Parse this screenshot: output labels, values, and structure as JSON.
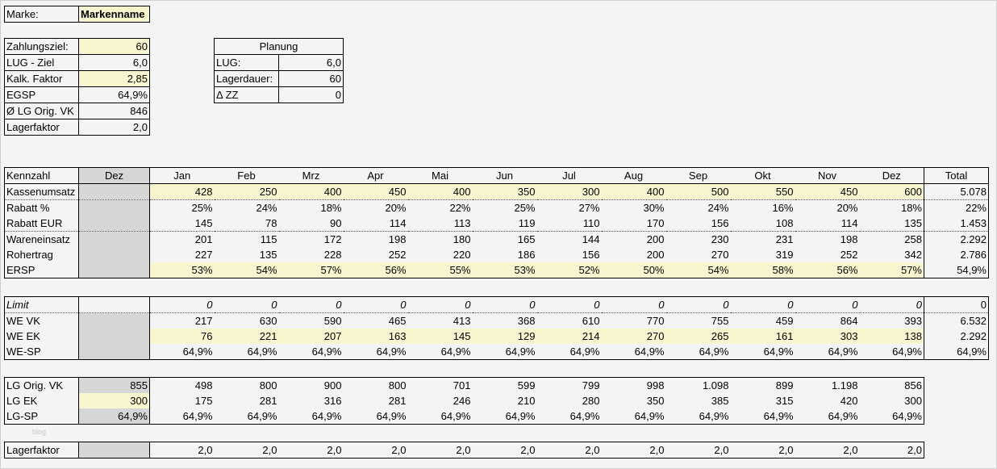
{
  "brand": {
    "label": "Marke:",
    "value": "Markenname"
  },
  "params": [
    {
      "label": "Zahlungsziel:",
      "value": "60",
      "highlight": "yellow"
    },
    {
      "label": "LUG - Ziel",
      "value": "6,0"
    },
    {
      "label": "Kalk. Faktor",
      "value": "2,85",
      "highlight": "yellow"
    },
    {
      "label": "EGSP",
      "value": "64,9%"
    },
    {
      "label": "Ø LG Orig. VK",
      "value": "846"
    },
    {
      "label": "Lagerfaktor",
      "value": "2,0"
    }
  ],
  "planning": {
    "title": "Planung",
    "rows": [
      {
        "label": "LUG:",
        "value": "6,0"
      },
      {
        "label": "Lagerdauer:",
        "value": "60"
      },
      {
        "label": "Δ ZZ",
        "value": "0"
      }
    ]
  },
  "header": {
    "label": "Kennzahl",
    "dez": "Dez",
    "months": [
      "Jan",
      "Feb",
      "Mrz",
      "Apr",
      "Mai",
      "Jun",
      "Jul",
      "Aug",
      "Sep",
      "Okt",
      "Nov",
      "Dez"
    ],
    "total": "Total"
  },
  "table1": [
    {
      "label": "Kassenumsatz",
      "dez": "",
      "values": [
        "428",
        "250",
        "400",
        "450",
        "400",
        "350",
        "300",
        "400",
        "500",
        "550",
        "450",
        "600"
      ],
      "total": "5.078",
      "highlight": "yellow",
      "dotted": true
    },
    {
      "label": "Rabatt %",
      "dez": "",
      "values": [
        "25%",
        "24%",
        "18%",
        "20%",
        "22%",
        "25%",
        "27%",
        "30%",
        "24%",
        "16%",
        "20%",
        "18%"
      ],
      "total": "22%"
    },
    {
      "label": "Rabatt EUR",
      "dez": "",
      "values": [
        "145",
        "78",
        "90",
        "114",
        "113",
        "119",
        "110",
        "170",
        "156",
        "108",
        "114",
        "135"
      ],
      "total": "1.453",
      "dotted": true
    },
    {
      "label": "Wareneinsatz",
      "dez": "",
      "values": [
        "201",
        "115",
        "172",
        "198",
        "180",
        "165",
        "144",
        "200",
        "230",
        "231",
        "198",
        "258"
      ],
      "total": "2.292"
    },
    {
      "label": "Rohertrag",
      "dez": "",
      "values": [
        "227",
        "135",
        "228",
        "252",
        "220",
        "186",
        "156",
        "200",
        "270",
        "319",
        "252",
        "342"
      ],
      "total": "2.786"
    },
    {
      "label": "ERSP",
      "dez": "",
      "values": [
        "53%",
        "54%",
        "57%",
        "56%",
        "55%",
        "53%",
        "52%",
        "50%",
        "54%",
        "58%",
        "56%",
        "57%"
      ],
      "total": "54,9%",
      "highlight": "yellow"
    }
  ],
  "table2": [
    {
      "label": "Limit",
      "dez": "",
      "values": [
        "0",
        "0",
        "0",
        "0",
        "0",
        "0",
        "0",
        "0",
        "0",
        "0",
        "0",
        "0"
      ],
      "total": "0",
      "italic": true,
      "dotted": true,
      "dez_plain": true
    },
    {
      "label": "WE VK",
      "dez": "",
      "values": [
        "217",
        "630",
        "590",
        "465",
        "413",
        "368",
        "610",
        "770",
        "755",
        "459",
        "864",
        "393"
      ],
      "total": "6.532"
    },
    {
      "label": "WE EK",
      "dez": "",
      "values": [
        "76",
        "221",
        "207",
        "163",
        "145",
        "129",
        "214",
        "270",
        "265",
        "161",
        "303",
        "138"
      ],
      "total": "2.292",
      "highlight": "yellow"
    },
    {
      "label": "WE-SP",
      "dez": "",
      "values": [
        "64,9%",
        "64,9%",
        "64,9%",
        "64,9%",
        "64,9%",
        "64,9%",
        "64,9%",
        "64,9%",
        "64,9%",
        "64,9%",
        "64,9%",
        "64,9%"
      ],
      "total": "64,9%"
    }
  ],
  "table3": [
    {
      "label": "LG Orig. VK",
      "dez": "855",
      "values": [
        "498",
        "800",
        "900",
        "800",
        "701",
        "599",
        "799",
        "998",
        "1.098",
        "899",
        "1.198",
        "856"
      ]
    },
    {
      "label": "LG EK",
      "dez": "300",
      "values": [
        "175",
        "281",
        "316",
        "281",
        "246",
        "210",
        "280",
        "350",
        "385",
        "315",
        "420",
        "300"
      ],
      "dez_highlight": "yellow"
    },
    {
      "label": "LG-SP",
      "dez": "64,9%",
      "values": [
        "64,9%",
        "64,9%",
        "64,9%",
        "64,9%",
        "64,9%",
        "64,9%",
        "64,9%",
        "64,9%",
        "64,9%",
        "64,9%",
        "64,9%",
        "64,9%"
      ]
    }
  ],
  "table4": [
    {
      "label": "Lagerfaktor",
      "dez": "",
      "values": [
        "2,0",
        "2,0",
        "2,0",
        "2,0",
        "2,0",
        "2,0",
        "2,0",
        "2,0",
        "2,0",
        "2,0",
        "2,0",
        "2,0"
      ]
    }
  ],
  "watermark": "blog",
  "colors": {
    "input_yellow": "#f8f6cf",
    "grey": "#d6d6d6"
  }
}
